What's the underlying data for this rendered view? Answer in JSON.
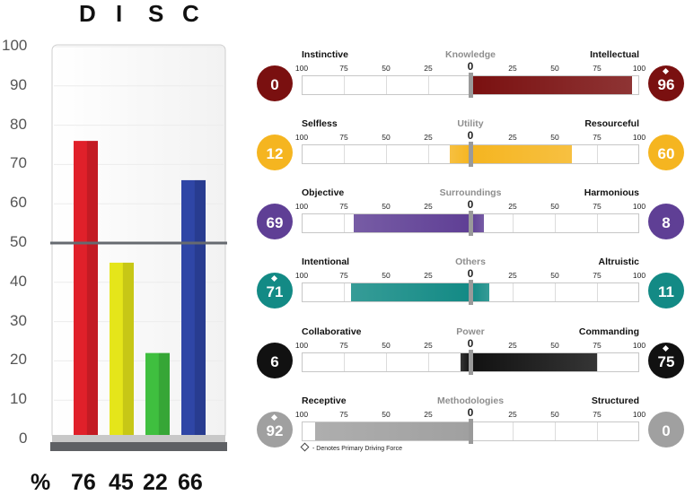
{
  "disc": {
    "letters": [
      "D",
      "I",
      "S",
      "C"
    ],
    "percent_symbol": "%",
    "y_ticks": [
      "100",
      "90",
      "80",
      "70",
      "60",
      "50",
      "40",
      "30",
      "20",
      "10",
      "0"
    ]
  },
  "values_panel": {
    "legend_note": "- Denotes Primary Driving Force"
  },
  "chart_data": [
    {
      "type": "bar",
      "categories": [
        "D",
        "I",
        "S",
        "C"
      ],
      "values": [
        76,
        45,
        22,
        66
      ],
      "value_labels": [
        "76",
        "45",
        "22",
        "66"
      ],
      "ylim": [
        0,
        100
      ],
      "reference_line": 50,
      "colors": [
        "#e0202a",
        "#e5e51a",
        "#3fbf3f",
        "#2f46a6"
      ]
    },
    {
      "type": "bar",
      "orientation": "diverging-horizontal",
      "scale_ticks": [
        "100",
        "75",
        "50",
        "25",
        "0",
        "25",
        "50",
        "75",
        "100"
      ],
      "rows": [
        {
          "name": "Knowledge",
          "left_label": "Instinctive",
          "right_label": "Intellectual",
          "left_value": 0,
          "right_value": 96,
          "left_display": "0",
          "right_display": "96",
          "diamond": "right",
          "color": "#7a1010"
        },
        {
          "name": "Utility",
          "left_label": "Selfless",
          "right_label": "Resourceful",
          "left_value": 12,
          "right_value": 60,
          "left_display": "12",
          "right_display": "60",
          "diamond": "none",
          "color": "#f5b520"
        },
        {
          "name": "Surroundings",
          "left_label": "Objective",
          "right_label": "Harmonious",
          "left_value": 69,
          "right_value": 8,
          "left_display": "69",
          "right_display": "8",
          "diamond": "none",
          "color": "#5f3f95"
        },
        {
          "name": "Others",
          "left_label": "Intentional",
          "right_label": "Altruistic",
          "left_value": 71,
          "right_value": 11,
          "left_display": "71",
          "right_display": "11",
          "diamond": "left",
          "color": "#138a85"
        },
        {
          "name": "Power",
          "left_label": "Collaborative",
          "right_label": "Commanding",
          "left_value": 6,
          "right_value": 75,
          "left_display": "6",
          "right_display": "75",
          "diamond": "right",
          "color": "#111111"
        },
        {
          "name": "Methodologies",
          "left_label": "Receptive",
          "right_label": "Structured",
          "left_value": 92,
          "right_value": 0,
          "left_display": "92",
          "right_display": "0",
          "diamond": "left",
          "color": "#a0a0a0"
        }
      ]
    }
  ]
}
